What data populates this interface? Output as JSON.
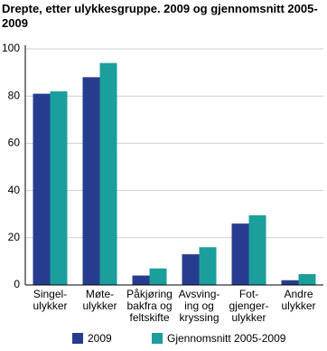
{
  "chart_data": {
    "type": "bar",
    "title": "Drepte, etter ulykkesgruppe. 2009 og gjennomsnitt 2005-2009",
    "categories": [
      "Singel-\nulykker",
      "Møte-\nulykker",
      "Påkjøring\nbakfra og\nfeltskifte",
      "Avsving-\ning og\nkryssing",
      "Fot-\ngjenger-\nulykker",
      "Andre\nulykker"
    ],
    "series": [
      {
        "name": "2009",
        "color": "#263d8f",
        "values": [
          81,
          88,
          4,
          13,
          26,
          2
        ]
      },
      {
        "name": "Gjennomsnitt 2005-2009",
        "color": "#1b9f9c",
        "values": [
          82,
          94,
          7,
          16,
          29.5,
          4.6
        ]
      }
    ],
    "ylim": [
      0,
      100
    ],
    "yticks": [
      0,
      20,
      40,
      60,
      80,
      100
    ],
    "grid": true
  }
}
